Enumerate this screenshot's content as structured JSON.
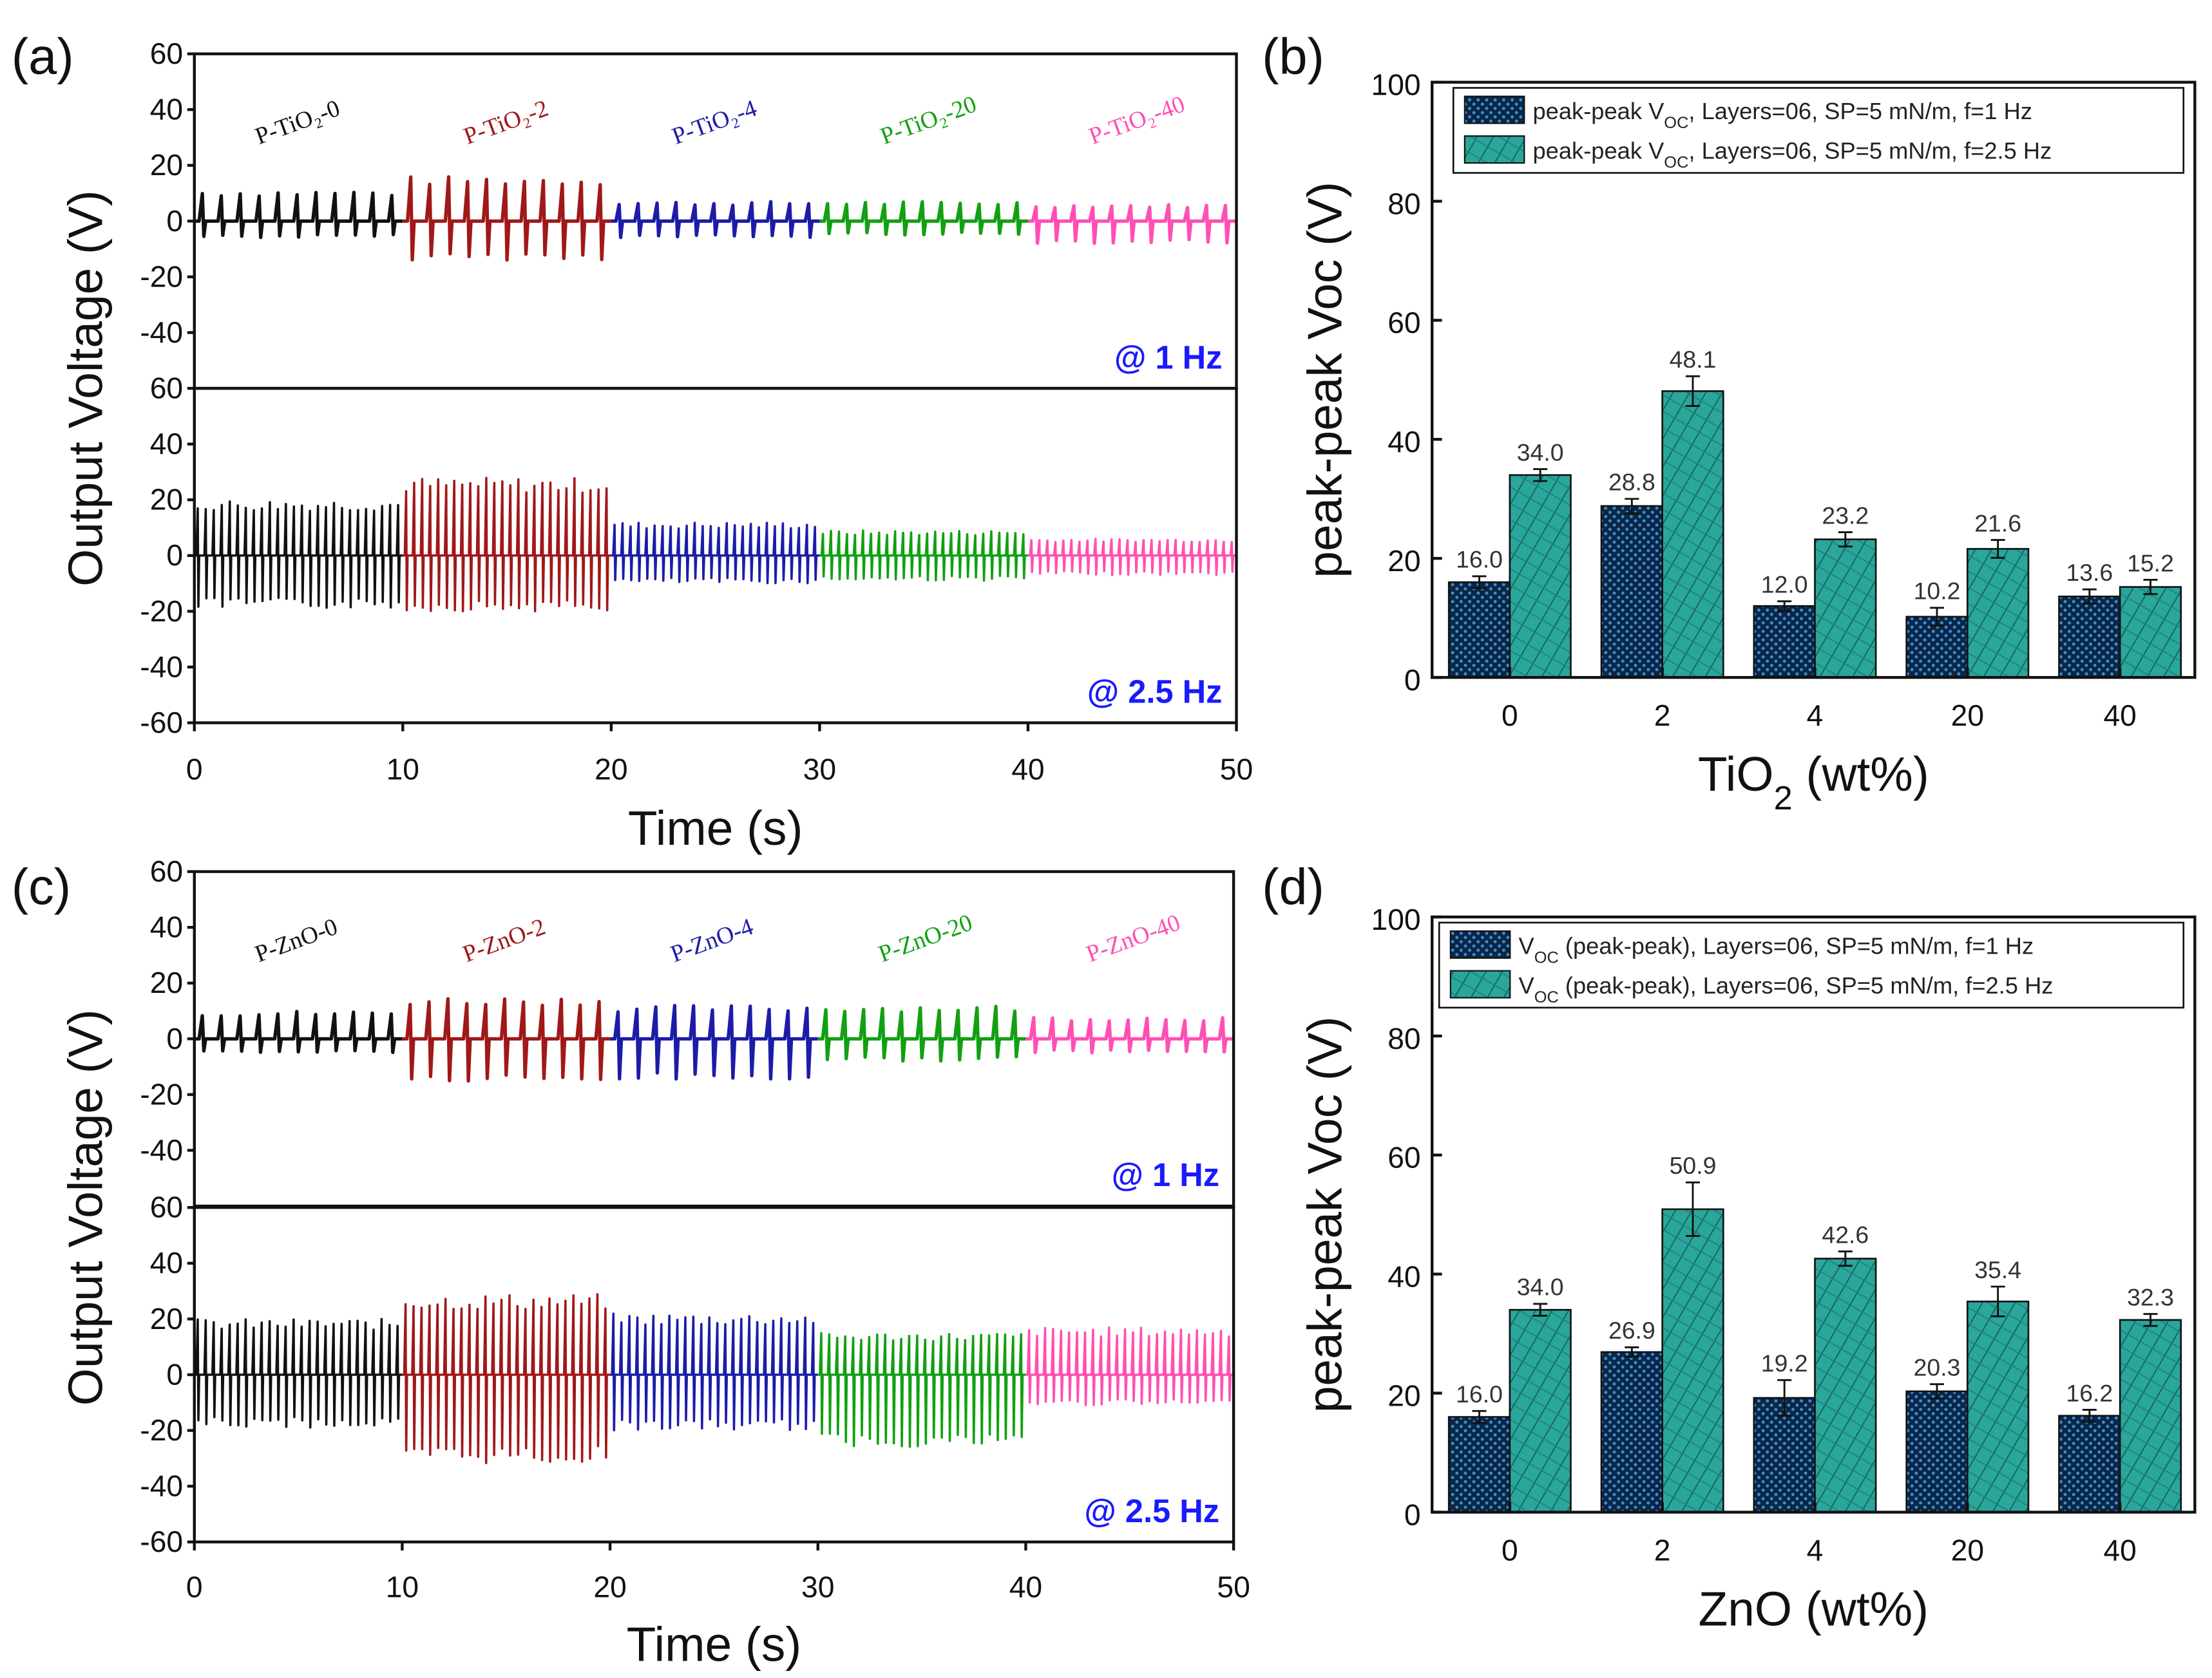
{
  "chart_data": [
    {
      "panel": "(a)",
      "type": "line",
      "ylabel": "Output Voltage (V)",
      "xlabel": "Time (s)",
      "xlim": [
        0,
        50
      ],
      "xticks": [
        0,
        10,
        20,
        30,
        40,
        50
      ],
      "ylim": [
        -60,
        60
      ],
      "yticks": [
        60,
        40,
        20,
        0,
        -20,
        -40,
        -60
      ],
      "samples": [
        "P-TiO₂-0",
        "P-TiO₂-2",
        "P-TiO₂-4",
        "P-TiO₂-20",
        "P-TiO₂-40"
      ],
      "colors": [
        "#111111",
        "#a01818",
        "#1c1ca8",
        "#12a012",
        "#ff4fb4"
      ],
      "subplots": [
        {
          "annotation": "@ 1 Hz",
          "frequency_hz": 1,
          "peak_pos_V": [
            11,
            16,
            7,
            7,
            6
          ],
          "peak_neg_V": [
            -6,
            -14,
            -6,
            -5,
            -8
          ]
        },
        {
          "annotation": "@ 2.5 Hz",
          "frequency_hz": 2.5,
          "peak_pos_V": [
            20,
            28,
            12,
            9,
            6
          ],
          "peak_neg_V": [
            -19,
            -20,
            -10,
            -9,
            -7
          ]
        }
      ]
    },
    {
      "panel": "(b)",
      "type": "bar",
      "ylabel": "peak-peak Voc (V)",
      "xlabel": {
        "prefix": "TiO",
        "sub": "2",
        "suffix": " (wt%)"
      },
      "categories": [
        "0",
        "2",
        "4",
        "20",
        "40"
      ],
      "ylim": [
        0,
        100
      ],
      "yticks": [
        0,
        20,
        40,
        60,
        80,
        100
      ],
      "legend_position": "top",
      "series": [
        {
          "name": {
            "prefix": "peak-peak V",
            "sub": "OC",
            "suffix": ", Layers=06, SP=5 mN/m, f=1 Hz"
          },
          "color": "#0b2744",
          "pattern": "dots",
          "values": [
            16.0,
            28.8,
            12.0,
            10.2,
            13.6
          ],
          "labels": [
            "16.0",
            "28.8",
            "12.0",
            "10.2",
            "13.6"
          ],
          "errors": [
            1.0,
            1.2,
            0.8,
            1.5,
            1.2
          ]
        },
        {
          "name": {
            "prefix": "peak-peak V",
            "sub": "OC",
            "suffix": ", Layers=06, SP=5 mN/m, f=2.5 Hz"
          },
          "color": "#2aa69b",
          "pattern": "hatch",
          "values": [
            34.0,
            48.1,
            23.2,
            21.6,
            15.2
          ],
          "labels": [
            "34.0",
            "48.1",
            "23.2",
            "21.6",
            "15.2"
          ],
          "errors": [
            1.0,
            2.5,
            1.2,
            1.5,
            1.2
          ]
        }
      ]
    },
    {
      "panel": "(c)",
      "type": "line",
      "ylabel": "Output Voltage (V)",
      "xlabel": "Time (s)",
      "xlim": [
        0,
        50
      ],
      "xticks": [
        0,
        10,
        20,
        30,
        40,
        50
      ],
      "ylim": [
        -60,
        60
      ],
      "yticks": [
        60,
        40,
        20,
        0,
        -20,
        -40,
        -60
      ],
      "samples": [
        "P-ZnO-0",
        "P-ZnO-2",
        "P-ZnO-4",
        "P-ZnO-20",
        "P-ZnO-40"
      ],
      "colors": [
        "#111111",
        "#a01818",
        "#1c1ca8",
        "#12a012",
        "#ff4fb4"
      ],
      "subplots": [
        {
          "annotation": "@ 1 Hz",
          "frequency_hz": 1,
          "peak_pos_V": [
            10,
            15,
            12,
            12,
            8
          ],
          "peak_neg_V": [
            -5,
            -16,
            -15,
            -8,
            -5
          ]
        },
        {
          "annotation": "@ 2.5 Hz",
          "frequency_hz": 2.5,
          "peak_pos_V": [
            20,
            29,
            22,
            15,
            17
          ],
          "peak_neg_V": [
            -19,
            -32,
            -20,
            -26,
            -11
          ]
        }
      ]
    },
    {
      "panel": "(d)",
      "type": "bar",
      "ylabel": "peak-peak Voc (V)",
      "xlabel": {
        "prefix": "ZnO",
        "sub": "",
        "suffix": " (wt%)"
      },
      "categories": [
        "0",
        "2",
        "4",
        "20",
        "40"
      ],
      "ylim": [
        0,
        100
      ],
      "yticks": [
        0,
        20,
        40,
        60,
        80,
        100
      ],
      "legend_position": "top",
      "series": [
        {
          "name": {
            "prefix": "V",
            "sub": "OC",
            "suffix": " (peak-peak), Layers=06, SP=5 mN/m, f=1 Hz"
          },
          "color": "#0b2744",
          "pattern": "dots",
          "values": [
            16.0,
            26.9,
            19.2,
            20.3,
            16.2
          ],
          "labels": [
            "16.0",
            "26.9",
            "19.2",
            "20.3",
            "16.2"
          ],
          "errors": [
            1.0,
            0.8,
            3.0,
            1.2,
            1.0
          ]
        },
        {
          "name": {
            "prefix": "V",
            "sub": "OC",
            "suffix": " (peak-peak), Layers=06, SP=5 mN/m, f=2.5 Hz"
          },
          "color": "#2aa69b",
          "pattern": "hatch",
          "values": [
            34.0,
            50.9,
            42.6,
            35.4,
            32.3
          ],
          "labels": [
            "34.0",
            "50.9",
            "42.6",
            "35.4",
            "32.3"
          ],
          "errors": [
            1.0,
            4.5,
            1.2,
            2.5,
            1.0
          ]
        }
      ]
    }
  ]
}
